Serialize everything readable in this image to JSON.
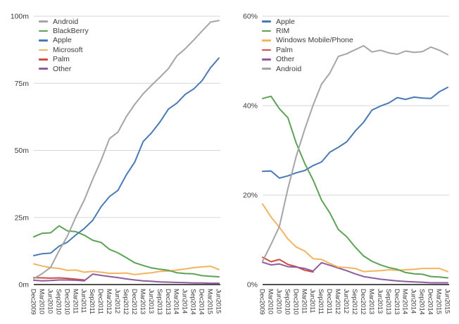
{
  "figure": {
    "background": "#ffffff",
    "text_color": "#3c3c3c",
    "gridline_color": "#d6d6d6",
    "axis_color": "#161616"
  },
  "chart_data": [
    {
      "type": "line",
      "id": "us-smartphone-installed-base",
      "title": "",
      "xlabel": "",
      "ylabel": "",
      "unit": "millions of subscribers",
      "ylim": [
        0,
        100
      ],
      "grid": true,
      "legend_position": "top-left-inside",
      "yticks": [
        {
          "value": 0,
          "label": "0m"
        },
        {
          "value": 25,
          "label": "25m"
        },
        {
          "value": 50,
          "label": "50m"
        },
        {
          "value": 75,
          "label": "75m"
        },
        {
          "value": 100,
          "label": "100m"
        }
      ],
      "categories": [
        "Dec2009",
        "Mar2010",
        "Jun2010",
        "Sep2010",
        "Dec2010",
        "Mar2011",
        "Jun2011",
        "Sep2011",
        "Dec2011",
        "Mar2012",
        "Jun2012",
        "Sep2012",
        "Dec2012",
        "Mar2013",
        "Jun2013",
        "Sep2013",
        "Dec2013",
        "Mar2014",
        "Jun2014",
        "Sep2014",
        "Dec2014",
        "Mar2015",
        "Jun2015"
      ],
      "series": [
        {
          "name": "Android",
          "color": "#a5a5a5",
          "values": [
            2.2,
            4.1,
            6.4,
            12.6,
            18.1,
            25.2,
            31.5,
            39.2,
            46.3,
            54.4,
            56.8,
            62.6,
            67.2,
            71.1,
            74.3,
            77.3,
            80.5,
            85.2,
            87.9,
            91.1,
            94.5,
            97.8,
            98.4
          ]
        },
        {
          "name": "BlackBerry",
          "color": "#5da256",
          "values": [
            17.8,
            19.1,
            19.3,
            21.9,
            20.0,
            19.7,
            18.4,
            16.5,
            15.7,
            13.1,
            11.8,
            10.0,
            8.1,
            7.1,
            6.2,
            5.7,
            5.3,
            4.4,
            4.1,
            4.0,
            3.3,
            3.1,
            2.9
          ]
        },
        {
          "name": "Apple",
          "color": "#4a7ab6",
          "values": [
            10.8,
            11.5,
            11.7,
            14.3,
            15.8,
            18.5,
            20.9,
            23.9,
            29.0,
            32.8,
            35.1,
            40.9,
            45.7,
            53.3,
            56.6,
            60.6,
            65.4,
            67.6,
            70.9,
            72.9,
            76.0,
            80.8,
            84.4
          ]
        },
        {
          "name": "Microsoft",
          "color": "#f2b45f",
          "values": [
            7.7,
            6.9,
            6.3,
            6.0,
            5.3,
            5.4,
            4.6,
            4.9,
            4.6,
            4.2,
            4.2,
            4.3,
            3.7,
            4.1,
            4.4,
            4.9,
            5.0,
            5.4,
            5.8,
            6.3,
            6.6,
            6.8,
            5.6
          ]
        },
        {
          "name": "Palm",
          "color": "#d04c42",
          "values": [
            2.6,
            2.5,
            2.4,
            2.5,
            2.3,
            2.0,
            1.7,
            null,
            null,
            null,
            null,
            null,
            null,
            null,
            null,
            null,
            null,
            null,
            null,
            null,
            null,
            null,
            null
          ]
        },
        {
          "name": "Other",
          "color": "#8e5da0",
          "values": [
            1.6,
            1.4,
            1.5,
            1.7,
            1.7,
            1.6,
            1.4,
            3.9,
            3.4,
            3.0,
            2.6,
            2.1,
            1.7,
            1.4,
            1.2,
            1.0,
            0.9,
            0.8,
            0.7,
            0.6,
            0.6,
            0.5,
            0.5
          ]
        }
      ],
      "draw_order": [
        "Microsoft",
        "Palm",
        "Other",
        "BlackBerry",
        "Apple",
        "Android"
      ]
    },
    {
      "type": "line",
      "id": "us-smartphone-market-share",
      "title": "",
      "xlabel": "",
      "ylabel": "",
      "unit": "percent market share",
      "ylim": [
        0,
        60
      ],
      "grid": true,
      "legend_position": "top-left-inside",
      "yticks": [
        {
          "value": 0,
          "label": "0%"
        },
        {
          "value": 20,
          "label": "20%"
        },
        {
          "value": 40,
          "label": "40%"
        },
        {
          "value": 60,
          "label": "60%"
        }
      ],
      "categories": [
        "Dec2009",
        "Mar2010",
        "Jun2010",
        "Sep2010",
        "Dec2010",
        "Mar2011",
        "Jun2011",
        "Sep2011",
        "Dec2011",
        "Mar2012",
        "Jun2012",
        "Sep2012",
        "Dec2012",
        "Mar2013",
        "Jun2013",
        "Sep2013",
        "Dec2013",
        "Mar2014",
        "Jun2014",
        "Sep2014",
        "Dec2014",
        "Mar2015",
        "Jun2015"
      ],
      "series": [
        {
          "name": "Apple",
          "color": "#4a7ab6",
          "values": [
            25.3,
            25.4,
            23.8,
            24.3,
            25.0,
            25.5,
            26.6,
            27.4,
            29.6,
            30.7,
            31.9,
            34.3,
            36.3,
            39.0,
            39.9,
            40.6,
            41.8,
            41.4,
            41.9,
            41.7,
            41.6,
            43.1,
            44.1
          ]
        },
        {
          "name": "RIM",
          "color": "#5da256",
          "values": [
            41.6,
            42.1,
            39.3,
            37.3,
            31.6,
            27.1,
            23.4,
            18.9,
            16.0,
            12.3,
            10.7,
            8.4,
            6.4,
            5.2,
            4.4,
            3.8,
            3.4,
            2.7,
            2.4,
            2.3,
            1.8,
            1.7,
            1.5
          ]
        },
        {
          "name": "Windows Mobile/Phone",
          "color": "#f2b45f",
          "values": [
            18.0,
            15.1,
            12.8,
            10.2,
            8.4,
            7.5,
            5.8,
            5.6,
            4.7,
            3.9,
            3.8,
            3.6,
            2.9,
            3.0,
            3.1,
            3.3,
            3.2,
            3.3,
            3.4,
            3.6,
            3.6,
            3.6,
            2.9
          ]
        },
        {
          "name": "Palm",
          "color": "#d04c42",
          "values": [
            6.1,
            5.1,
            5.6,
            4.5,
            4.0,
            3.2,
            2.8,
            null,
            null,
            null,
            null,
            null,
            null,
            null,
            null,
            null,
            null,
            null,
            null,
            null,
            null,
            null,
            null
          ]
        },
        {
          "name": "Other",
          "color": "#8e5da0",
          "values": [
            5.0,
            4.4,
            4.6,
            4.0,
            3.9,
            3.6,
            3.0,
            4.9,
            4.3,
            3.7,
            3.1,
            2.4,
            1.8,
            1.5,
            1.2,
            1.0,
            0.8,
            0.7,
            0.6,
            0.5,
            0.4,
            0.4,
            0.4
          ]
        },
        {
          "name": "Android",
          "color": "#a5a5a5",
          "values": [
            5.2,
            9.0,
            13.0,
            21.4,
            28.7,
            34.7,
            40.1,
            44.8,
            47.3,
            51.0,
            51.6,
            52.5,
            53.4,
            52.0,
            52.4,
            51.8,
            51.5,
            52.2,
            51.9,
            52.1,
            53.1,
            52.4,
            51.4
          ]
        }
      ],
      "draw_order": [
        "Palm",
        "Other",
        "Windows Mobile/Phone",
        "Apple",
        "RIM",
        "Android"
      ]
    }
  ]
}
